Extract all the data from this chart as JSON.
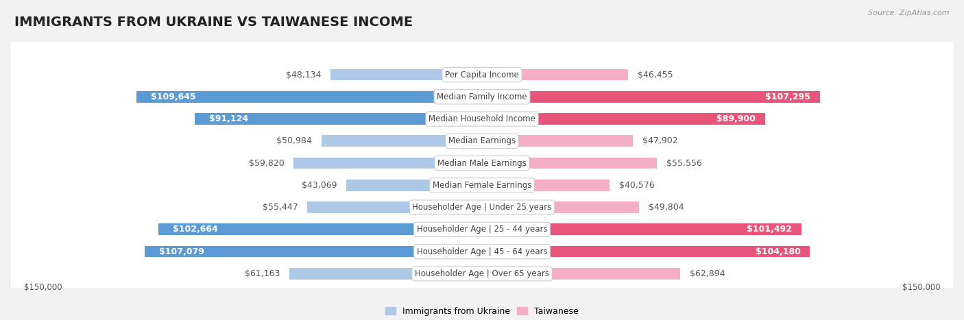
{
  "title": "IMMIGRANTS FROM UKRAINE VS TAIWANESE INCOME",
  "source": "Source: ZipAtlas.com",
  "categories": [
    "Per Capita Income",
    "Median Family Income",
    "Median Household Income",
    "Median Earnings",
    "Median Male Earnings",
    "Median Female Earnings",
    "Householder Age | Under 25 years",
    "Householder Age | 25 - 44 years",
    "Householder Age | 45 - 64 years",
    "Householder Age | Over 65 years"
  ],
  "ukraine_values": [
    48134,
    109645,
    91124,
    50984,
    59820,
    43069,
    55447,
    102664,
    107079,
    61163
  ],
  "taiwanese_values": [
    46455,
    107295,
    89900,
    47902,
    55556,
    40576,
    49804,
    101492,
    104180,
    62894
  ],
  "ukraine_labels": [
    "$48,134",
    "$109,645",
    "$91,124",
    "$50,984",
    "$59,820",
    "$43,069",
    "$55,447",
    "$102,664",
    "$107,079",
    "$61,163"
  ],
  "taiwanese_labels": [
    "$46,455",
    "$107,295",
    "$89,900",
    "$47,902",
    "$55,556",
    "$40,576",
    "$49,804",
    "$101,492",
    "$104,180",
    "$62,894"
  ],
  "ukraine_color_light": "#aec9e8",
  "ukraine_color_dark": "#5b9bd5",
  "taiwanese_color_light": "#f4aec8",
  "taiwanese_color_dark": "#e8547a",
  "max_value": 150000,
  "ukraine_legend": "Immigrants from Ukraine",
  "taiwanese_legend": "Taiwanese",
  "label_threshold": 75000,
  "background_color": "#f2f2f2",
  "row_color": "#ffffff",
  "title_fontsize": 14,
  "label_fontsize": 9,
  "category_fontsize": 8.5,
  "bottom_label": "$150,000"
}
